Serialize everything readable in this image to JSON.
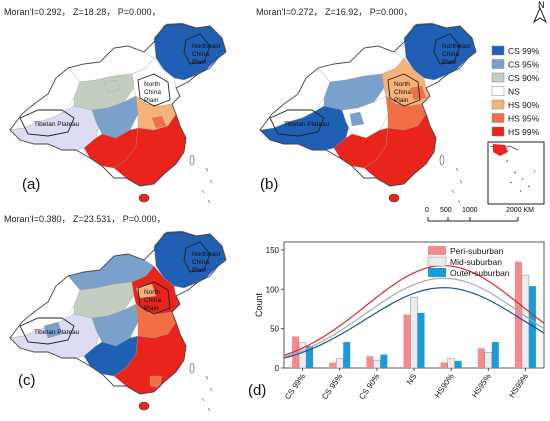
{
  "maps": [
    {
      "label": "(a)",
      "stat": "Moran'I=0.292， Z=18.28， P=0.000，"
    },
    {
      "label": "(b)",
      "stat": "Moran'I=0.272， Z=16.92， P=0.000，"
    },
    {
      "label": "(c)",
      "stat": "Moran'I=0.380， Z=23.531， P=0.000，"
    }
  ],
  "region_labels": {
    "northeast": [
      "Northeast",
      "China",
      "Plain"
    ],
    "north": [
      "North",
      "China",
      "Plain"
    ],
    "tibet": "Tibetan Plateau"
  },
  "north_arrow": "N",
  "map_legend": [
    {
      "label": "CS 99%",
      "color": "#1f5fb4"
    },
    {
      "label": "CS 95%",
      "color": "#7aa0cc"
    },
    {
      "label": "CS 90%",
      "color": "#c4cec0"
    },
    {
      "label": "NS",
      "color": "#ffffff"
    },
    {
      "label": "HS 90%",
      "color": "#f7b27a"
    },
    {
      "label": "HS 95%",
      "color": "#f26e45"
    },
    {
      "label": "HS 99%",
      "color": "#e8241c"
    }
  ],
  "scale_bar": {
    "ticks": [
      "0",
      "500",
      "1000",
      "2000 KM"
    ]
  },
  "chart_label": "(d)",
  "chart_data": {
    "type": "bar",
    "categories": [
      "CS 99%",
      "CS 95%",
      "CS 90%",
      "NS",
      "HS90%",
      "HS95%",
      "HS99%"
    ],
    "series": [
      {
        "name": "Peri-suburban",
        "color": "#f48a8c",
        "values": [
          40,
          7,
          15,
          68,
          7,
          25,
          135
        ]
      },
      {
        "name": "Mid-suburban",
        "color": "#ececec",
        "values": [
          32,
          12,
          10,
          90,
          12,
          20,
          118
        ]
      },
      {
        "name": "Outer-suburban",
        "color": "#1b9bd7",
        "values": [
          28,
          33,
          17,
          70,
          9,
          33,
          104
        ]
      }
    ],
    "curves": [
      {
        "color": "#d42a2a",
        "peak": 130
      },
      {
        "color": "#a8a8b2",
        "peak": 114
      },
      {
        "color": "#1f4f99",
        "peak": 102
      }
    ],
    "ylabel": "Count",
    "xlabel": "",
    "ylim": [
      0,
      160
    ],
    "yticks": [
      0,
      50,
      100,
      150
    ],
    "legend_position": "top-right"
  }
}
